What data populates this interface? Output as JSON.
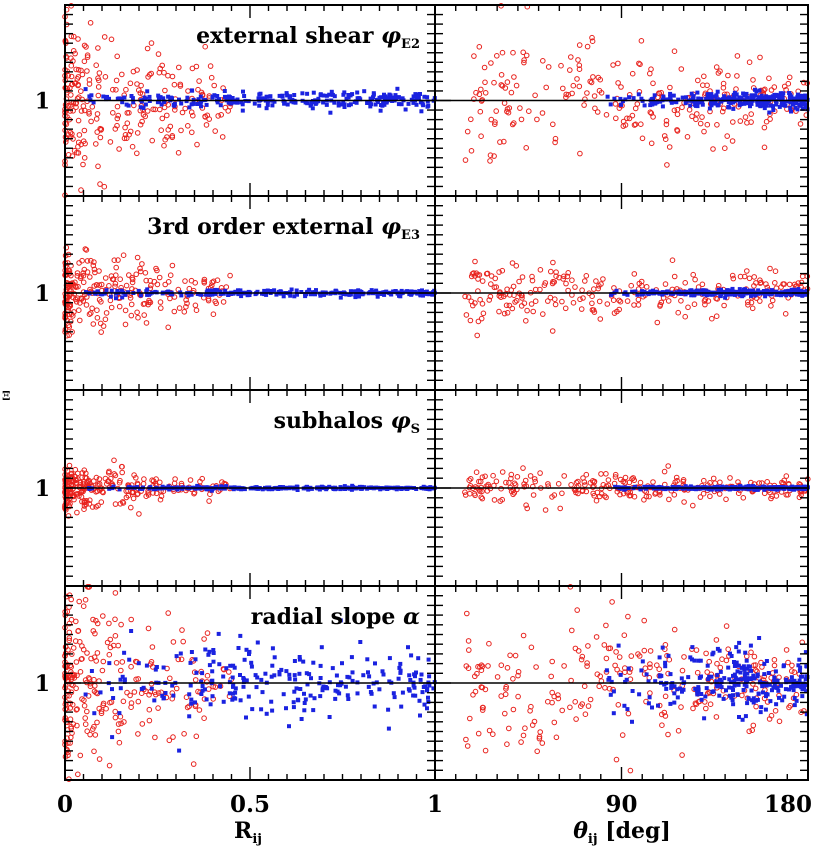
{
  "chart_data": {
    "type": "scatter",
    "layout": "4x2 grid",
    "y_axis_label": "Ξ",
    "y_tick_label": "1",
    "columns": [
      {
        "xlabel_main": "R",
        "xlabel_sub": "ij",
        "xlabel_rest": "",
        "xlim": [
          0,
          1
        ],
        "xtick_values": [
          0,
          0.5,
          1
        ],
        "xtick_labels": [
          "0",
          "0.5",
          "1"
        ]
      },
      {
        "xlabel_main": "θ",
        "xlabel_sub": "ij",
        "xlabel_rest": " [deg]",
        "xlim": [
          0,
          180
        ],
        "xtick_values": [
          90,
          180
        ],
        "xtick_labels": [
          "90",
          "180"
        ]
      }
    ],
    "rows": [
      {
        "title_text": "external shear ",
        "title_symbol": "φ",
        "title_sub": "E2",
        "ylim": [
          0.5,
          1.5
        ],
        "red_spread": 0.3,
        "blue_spread": 0.022
      },
      {
        "title_text": "3rd order external ",
        "title_symbol": "φ",
        "title_sub": "E3",
        "ylim": [
          0.5,
          1.5
        ],
        "red_spread": 0.16,
        "blue_spread": 0.008
      },
      {
        "title_text": "subhalos ",
        "title_symbol": "φ",
        "title_sub": "S",
        "ylim": [
          0.5,
          1.5
        ],
        "red_spread": 0.08,
        "blue_spread": 0.004
      },
      {
        "title_text": "radial slope ",
        "title_symbol": "α",
        "title_sub": "",
        "ylim": [
          0.5,
          1.5
        ],
        "red_spread": 0.38,
        "blue_spread": 0.1
      }
    ],
    "series": [
      {
        "name": "open circles",
        "color": "#e8231e",
        "marker": "open-circle"
      },
      {
        "name": "filled squares",
        "color": "#1a22e0",
        "marker": "filled-square"
      }
    ]
  }
}
